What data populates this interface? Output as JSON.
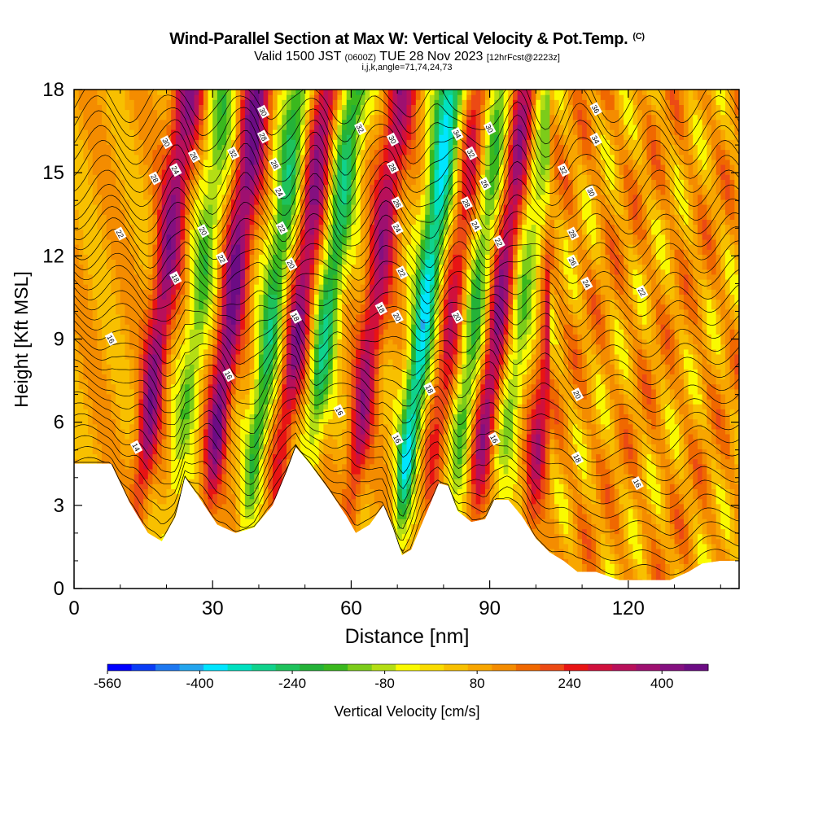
{
  "title": {
    "main": "Wind-Parallel Section at Max W: Vertical Velocity & Pot.Temp.",
    "copyright": "(C)",
    "valid_prefix": "Valid 1500 JST",
    "valid_utc": "(0600Z)",
    "valid_date": "TUE 28 Nov 2023",
    "forecast": "[12hrFcst@2223z]",
    "params": "i,j,k,angle=71,74,24,73"
  },
  "colorbar": {
    "label": "Vertical Velocity [cm/s]",
    "tick_labels": [
      "-560",
      "-400",
      "-240",
      "-80",
      "80",
      "240",
      "400"
    ],
    "colors": [
      "#0000ff",
      "#0a3cf5",
      "#1e78f0",
      "#23a5ee",
      "#00e5ff",
      "#00e0c0",
      "#10d28c",
      "#1ec25c",
      "#24b238",
      "#3ab81e",
      "#7ccc1a",
      "#b4de14",
      "#fafa00",
      "#fadc00",
      "#f8c000",
      "#f8a600",
      "#f48c00",
      "#f06800",
      "#ec4a14",
      "#e81414",
      "#d0103c",
      "#b8105a",
      "#9e1070",
      "#841080",
      "#6c0c84"
    ]
  },
  "chart_data": {
    "type": "heatmap",
    "title": "Wind-Parallel Section at Max W: Vertical Velocity & Pot.Temp.",
    "xlabel": "Distance [nm]",
    "ylabel": "Height [Kft MSL]",
    "xlim": [
      0,
      144
    ],
    "ylim": [
      0,
      18
    ],
    "x_ticks": [
      0,
      30,
      60,
      90,
      120
    ],
    "y_ticks": [
      0,
      3,
      6,
      9,
      12,
      15,
      18
    ],
    "color_field": "Vertical Velocity [cm/s]",
    "color_range": [
      -560,
      480
    ],
    "color_interval": 40,
    "contour_field": "Potential Temperature",
    "contour_labels_shown": [
      "14",
      "16",
      "18",
      "20",
      "22",
      "24",
      "26",
      "28",
      "30",
      "32",
      "34",
      "36"
    ],
    "terrain_profile": {
      "x": [
        0,
        8,
        12,
        16,
        19,
        22,
        24,
        27,
        31,
        35,
        39,
        43,
        46,
        48,
        51,
        55,
        59,
        61,
        64,
        67,
        69,
        71,
        73,
        76,
        79,
        81,
        83,
        86,
        89,
        91,
        94,
        97,
        100,
        103,
        106,
        109,
        113,
        118,
        124,
        129,
        133,
        136,
        140,
        144
      ],
      "height_kft": [
        4.5,
        4.5,
        3.1,
        2.0,
        1.7,
        2.6,
        4.0,
        3.3,
        2.3,
        2.0,
        2.2,
        3.0,
        4.2,
        5.1,
        4.5,
        3.6,
        2.6,
        2.0,
        2.3,
        3.0,
        2.2,
        1.2,
        1.4,
        2.6,
        3.8,
        3.7,
        2.8,
        2.4,
        2.5,
        3.2,
        3.2,
        2.6,
        1.8,
        1.3,
        1.0,
        0.6,
        0.6,
        0.3,
        0.3,
        0.3,
        0.6,
        0.9,
        1.0,
        1.0
      ]
    },
    "velocity_bands": [
      {
        "x_surface": 14,
        "sign": "up",
        "peak_cm_s": 300
      },
      {
        "x_surface": 22,
        "sign": "down",
        "peak_cm_s": -220
      },
      {
        "x_surface": 29,
        "sign": "up",
        "peak_cm_s": 340
      },
      {
        "x_surface": 38,
        "sign": "down",
        "peak_cm_s": -300
      },
      {
        "x_surface": 44,
        "sign": "up",
        "peak_cm_s": 300
      },
      {
        "x_surface": 50,
        "sign": "down",
        "peak_cm_s": -320
      },
      {
        "x_surface": 60,
        "sign": "up",
        "peak_cm_s": 260
      },
      {
        "x_surface": 71,
        "sign": "down",
        "peak_cm_s": -420
      },
      {
        "x_surface": 77,
        "sign": "up",
        "peak_cm_s": 200
      },
      {
        "x_surface": 82,
        "sign": "down",
        "peak_cm_s": -260
      },
      {
        "x_surface": 87,
        "sign": "up",
        "peak_cm_s": 300
      },
      {
        "x_surface": 92,
        "sign": "down",
        "peak_cm_s": -200
      },
      {
        "x_surface": 99,
        "sign": "up",
        "peak_cm_s": 240
      }
    ]
  },
  "axes": {
    "x_tick_labels": [
      "0",
      "30",
      "60",
      "90",
      "120"
    ],
    "y_tick_labels": [
      "0",
      "3",
      "6",
      "9",
      "12",
      "15",
      "18"
    ]
  }
}
